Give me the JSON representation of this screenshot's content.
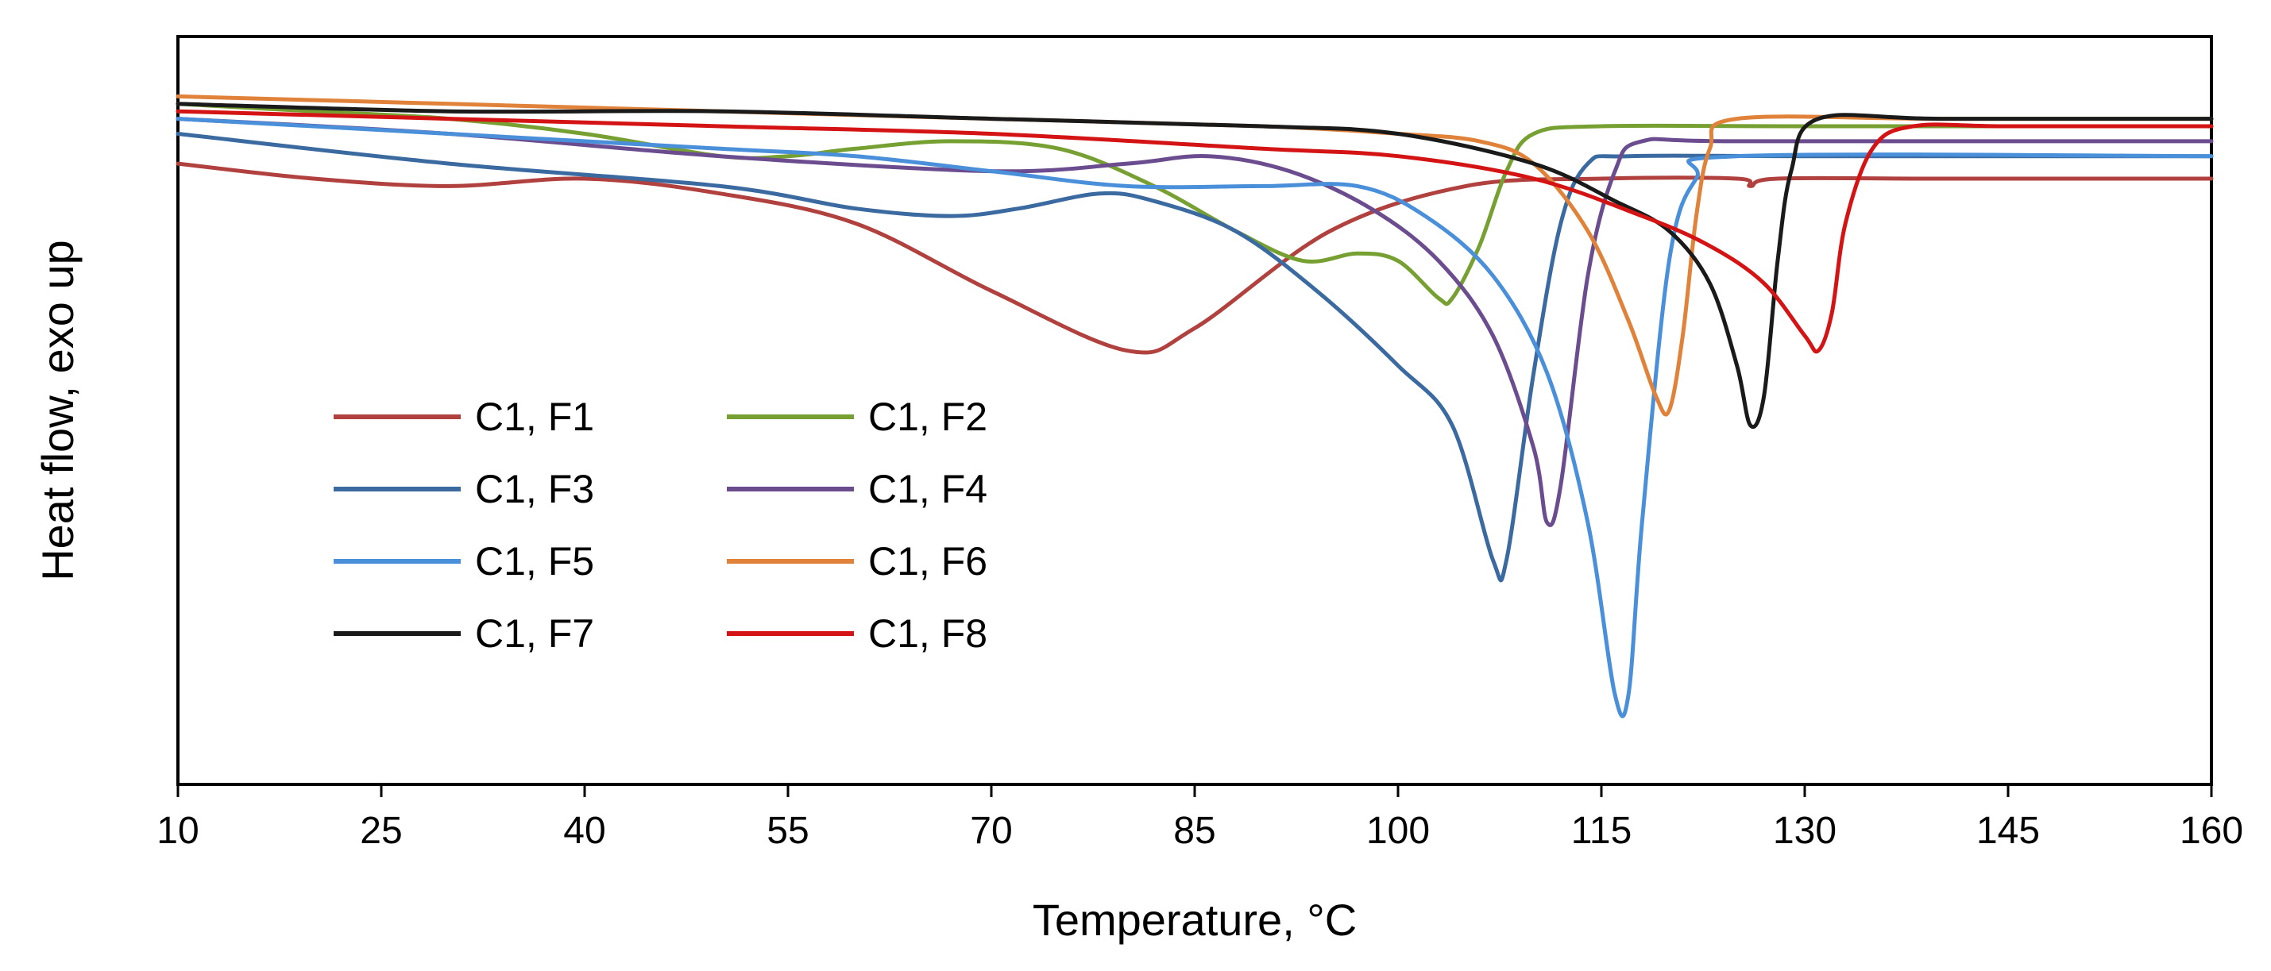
{
  "chart_data": {
    "type": "line",
    "title": "",
    "xlabel": "Temperature, °C",
    "ylabel": "Heat flow, exo up",
    "xlim": [
      10,
      160
    ],
    "x_ticks": [
      10,
      25,
      40,
      55,
      70,
      85,
      100,
      115,
      130,
      145,
      160
    ],
    "ylim": [
      0,
      100
    ],
    "y_ticks": [],
    "grid": false,
    "legend_position": "center-left",
    "series": [
      {
        "name": "C1, F1",
        "color": "#b0413e",
        "points": [
          [
            10,
            83
          ],
          [
            20,
            81
          ],
          [
            30,
            80
          ],
          [
            40,
            81
          ],
          [
            50,
            79
          ],
          [
            60,
            75
          ],
          [
            70,
            66
          ],
          [
            80,
            58
          ],
          [
            85,
            61
          ],
          [
            95,
            74
          ],
          [
            105,
            80
          ],
          [
            115,
            81
          ],
          [
            125,
            81
          ],
          [
            126,
            80
          ],
          [
            128,
            81
          ],
          [
            140,
            81
          ],
          [
            160,
            81
          ]
        ]
      },
      {
        "name": "C1, F2",
        "color": "#77a033",
        "points": [
          [
            10,
            91
          ],
          [
            20,
            90
          ],
          [
            30,
            89
          ],
          [
            40,
            87
          ],
          [
            50,
            84
          ],
          [
            55,
            84
          ],
          [
            60,
            85
          ],
          [
            67,
            86
          ],
          [
            75,
            85
          ],
          [
            82,
            80
          ],
          [
            88,
            74
          ],
          [
            93,
            70
          ],
          [
            97,
            71
          ],
          [
            100,
            70
          ],
          [
            103,
            65
          ],
          [
            104,
            65
          ],
          [
            106,
            72
          ],
          [
            108,
            82
          ],
          [
            110,
            87
          ],
          [
            115,
            88
          ],
          [
            130,
            88
          ],
          [
            160,
            88
          ]
        ]
      },
      {
        "name": "C1, F3",
        "color": "#3b6aa0",
        "points": [
          [
            10,
            87
          ],
          [
            30,
            83
          ],
          [
            50,
            80
          ],
          [
            60,
            77
          ],
          [
            67,
            76
          ],
          [
            72,
            77
          ],
          [
            78,
            79
          ],
          [
            82,
            78
          ],
          [
            88,
            74
          ],
          [
            94,
            66
          ],
          [
            100,
            56
          ],
          [
            104,
            48
          ],
          [
            107,
            30
          ],
          [
            108,
            30
          ],
          [
            110,
            55
          ],
          [
            112,
            75
          ],
          [
            114,
            83
          ],
          [
            117,
            84
          ],
          [
            130,
            84
          ],
          [
            160,
            84
          ]
        ]
      },
      {
        "name": "C1, F4",
        "color": "#6b4c8f",
        "points": [
          [
            10,
            89
          ],
          [
            30,
            87
          ],
          [
            50,
            84
          ],
          [
            70,
            82
          ],
          [
            80,
            83
          ],
          [
            86,
            84
          ],
          [
            92,
            82
          ],
          [
            98,
            77
          ],
          [
            103,
            70
          ],
          [
            107,
            60
          ],
          [
            110,
            45
          ],
          [
            111,
            35
          ],
          [
            112,
            40
          ],
          [
            114,
            68
          ],
          [
            116,
            82
          ],
          [
            118,
            86
          ],
          [
            125,
            86
          ],
          [
            160,
            86
          ]
        ]
      },
      {
        "name": "C1, F5",
        "color": "#4a8fd9",
        "points": [
          [
            10,
            89
          ],
          [
            30,
            87
          ],
          [
            50,
            85
          ],
          [
            60,
            84
          ],
          [
            70,
            82
          ],
          [
            80,
            80
          ],
          [
            90,
            80
          ],
          [
            97,
            80
          ],
          [
            102,
            76
          ],
          [
            107,
            68
          ],
          [
            111,
            55
          ],
          [
            114,
            35
          ],
          [
            116,
            12
          ],
          [
            117,
            12
          ],
          [
            118,
            35
          ],
          [
            120,
            70
          ],
          [
            122,
            81
          ],
          [
            125,
            84
          ],
          [
            160,
            84
          ]
        ]
      },
      {
        "name": "C1, F6",
        "color": "#e0823a",
        "points": [
          [
            10,
            92
          ],
          [
            30,
            91
          ],
          [
            50,
            90
          ],
          [
            70,
            89
          ],
          [
            90,
            88
          ],
          [
            100,
            87
          ],
          [
            106,
            86
          ],
          [
            110,
            83
          ],
          [
            114,
            74
          ],
          [
            117,
            62
          ],
          [
            119,
            52
          ],
          [
            120,
            50
          ],
          [
            121,
            60
          ],
          [
            122,
            76
          ],
          [
            123,
            85
          ],
          [
            125,
            89
          ],
          [
            140,
            89
          ],
          [
            160,
            89
          ]
        ]
      },
      {
        "name": "C1, F7",
        "color": "#1a1a1a",
        "points": [
          [
            10,
            91
          ],
          [
            30,
            90
          ],
          [
            50,
            90
          ],
          [
            70,
            89
          ],
          [
            90,
            88
          ],
          [
            100,
            87
          ],
          [
            110,
            83
          ],
          [
            116,
            78
          ],
          [
            120,
            74
          ],
          [
            123,
            67
          ],
          [
            125,
            56
          ],
          [
            126,
            48
          ],
          [
            127,
            52
          ],
          [
            128,
            70
          ],
          [
            129,
            82
          ],
          [
            131,
            89
          ],
          [
            140,
            89
          ],
          [
            160,
            89
          ]
        ]
      },
      {
        "name": "C1, F8",
        "color": "#d41414",
        "points": [
          [
            10,
            90
          ],
          [
            30,
            89
          ],
          [
            50,
            88
          ],
          [
            70,
            87
          ],
          [
            90,
            85
          ],
          [
            100,
            84
          ],
          [
            110,
            81
          ],
          [
            118,
            76
          ],
          [
            123,
            72
          ],
          [
            127,
            67
          ],
          [
            130,
            60
          ],
          [
            131,
            58
          ],
          [
            132,
            63
          ],
          [
            133,
            75
          ],
          [
            135,
            85
          ],
          [
            138,
            88
          ],
          [
            145,
            88
          ],
          [
            160,
            88
          ]
        ]
      }
    ]
  }
}
